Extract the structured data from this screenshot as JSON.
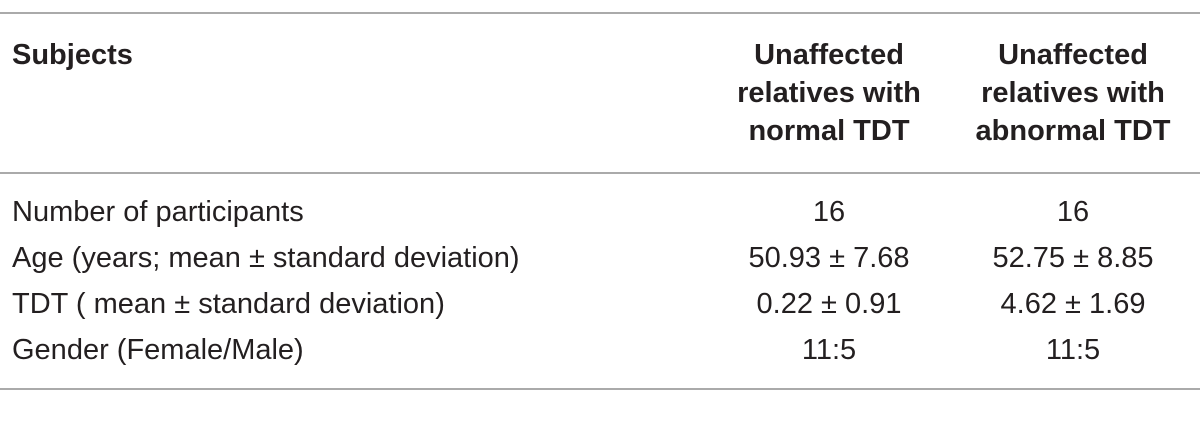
{
  "table": {
    "header": [
      "Subjects",
      "Unaffected relatives with normal TDT",
      "Unaffected relatives with abnormal TDT"
    ],
    "rows": [
      [
        "Number of participants",
        "16",
        "16"
      ],
      [
        "Age (years; mean ± standard deviation)",
        "50.93 ± 7.68",
        "52.75 ± 8.85"
      ],
      [
        "TDT ( mean ± standard deviation)",
        "0.22 ± 0.91",
        "4.62 ± 1.69"
      ],
      [
        "Gender (Female/Male)",
        "11:5",
        "11:5"
      ]
    ]
  }
}
